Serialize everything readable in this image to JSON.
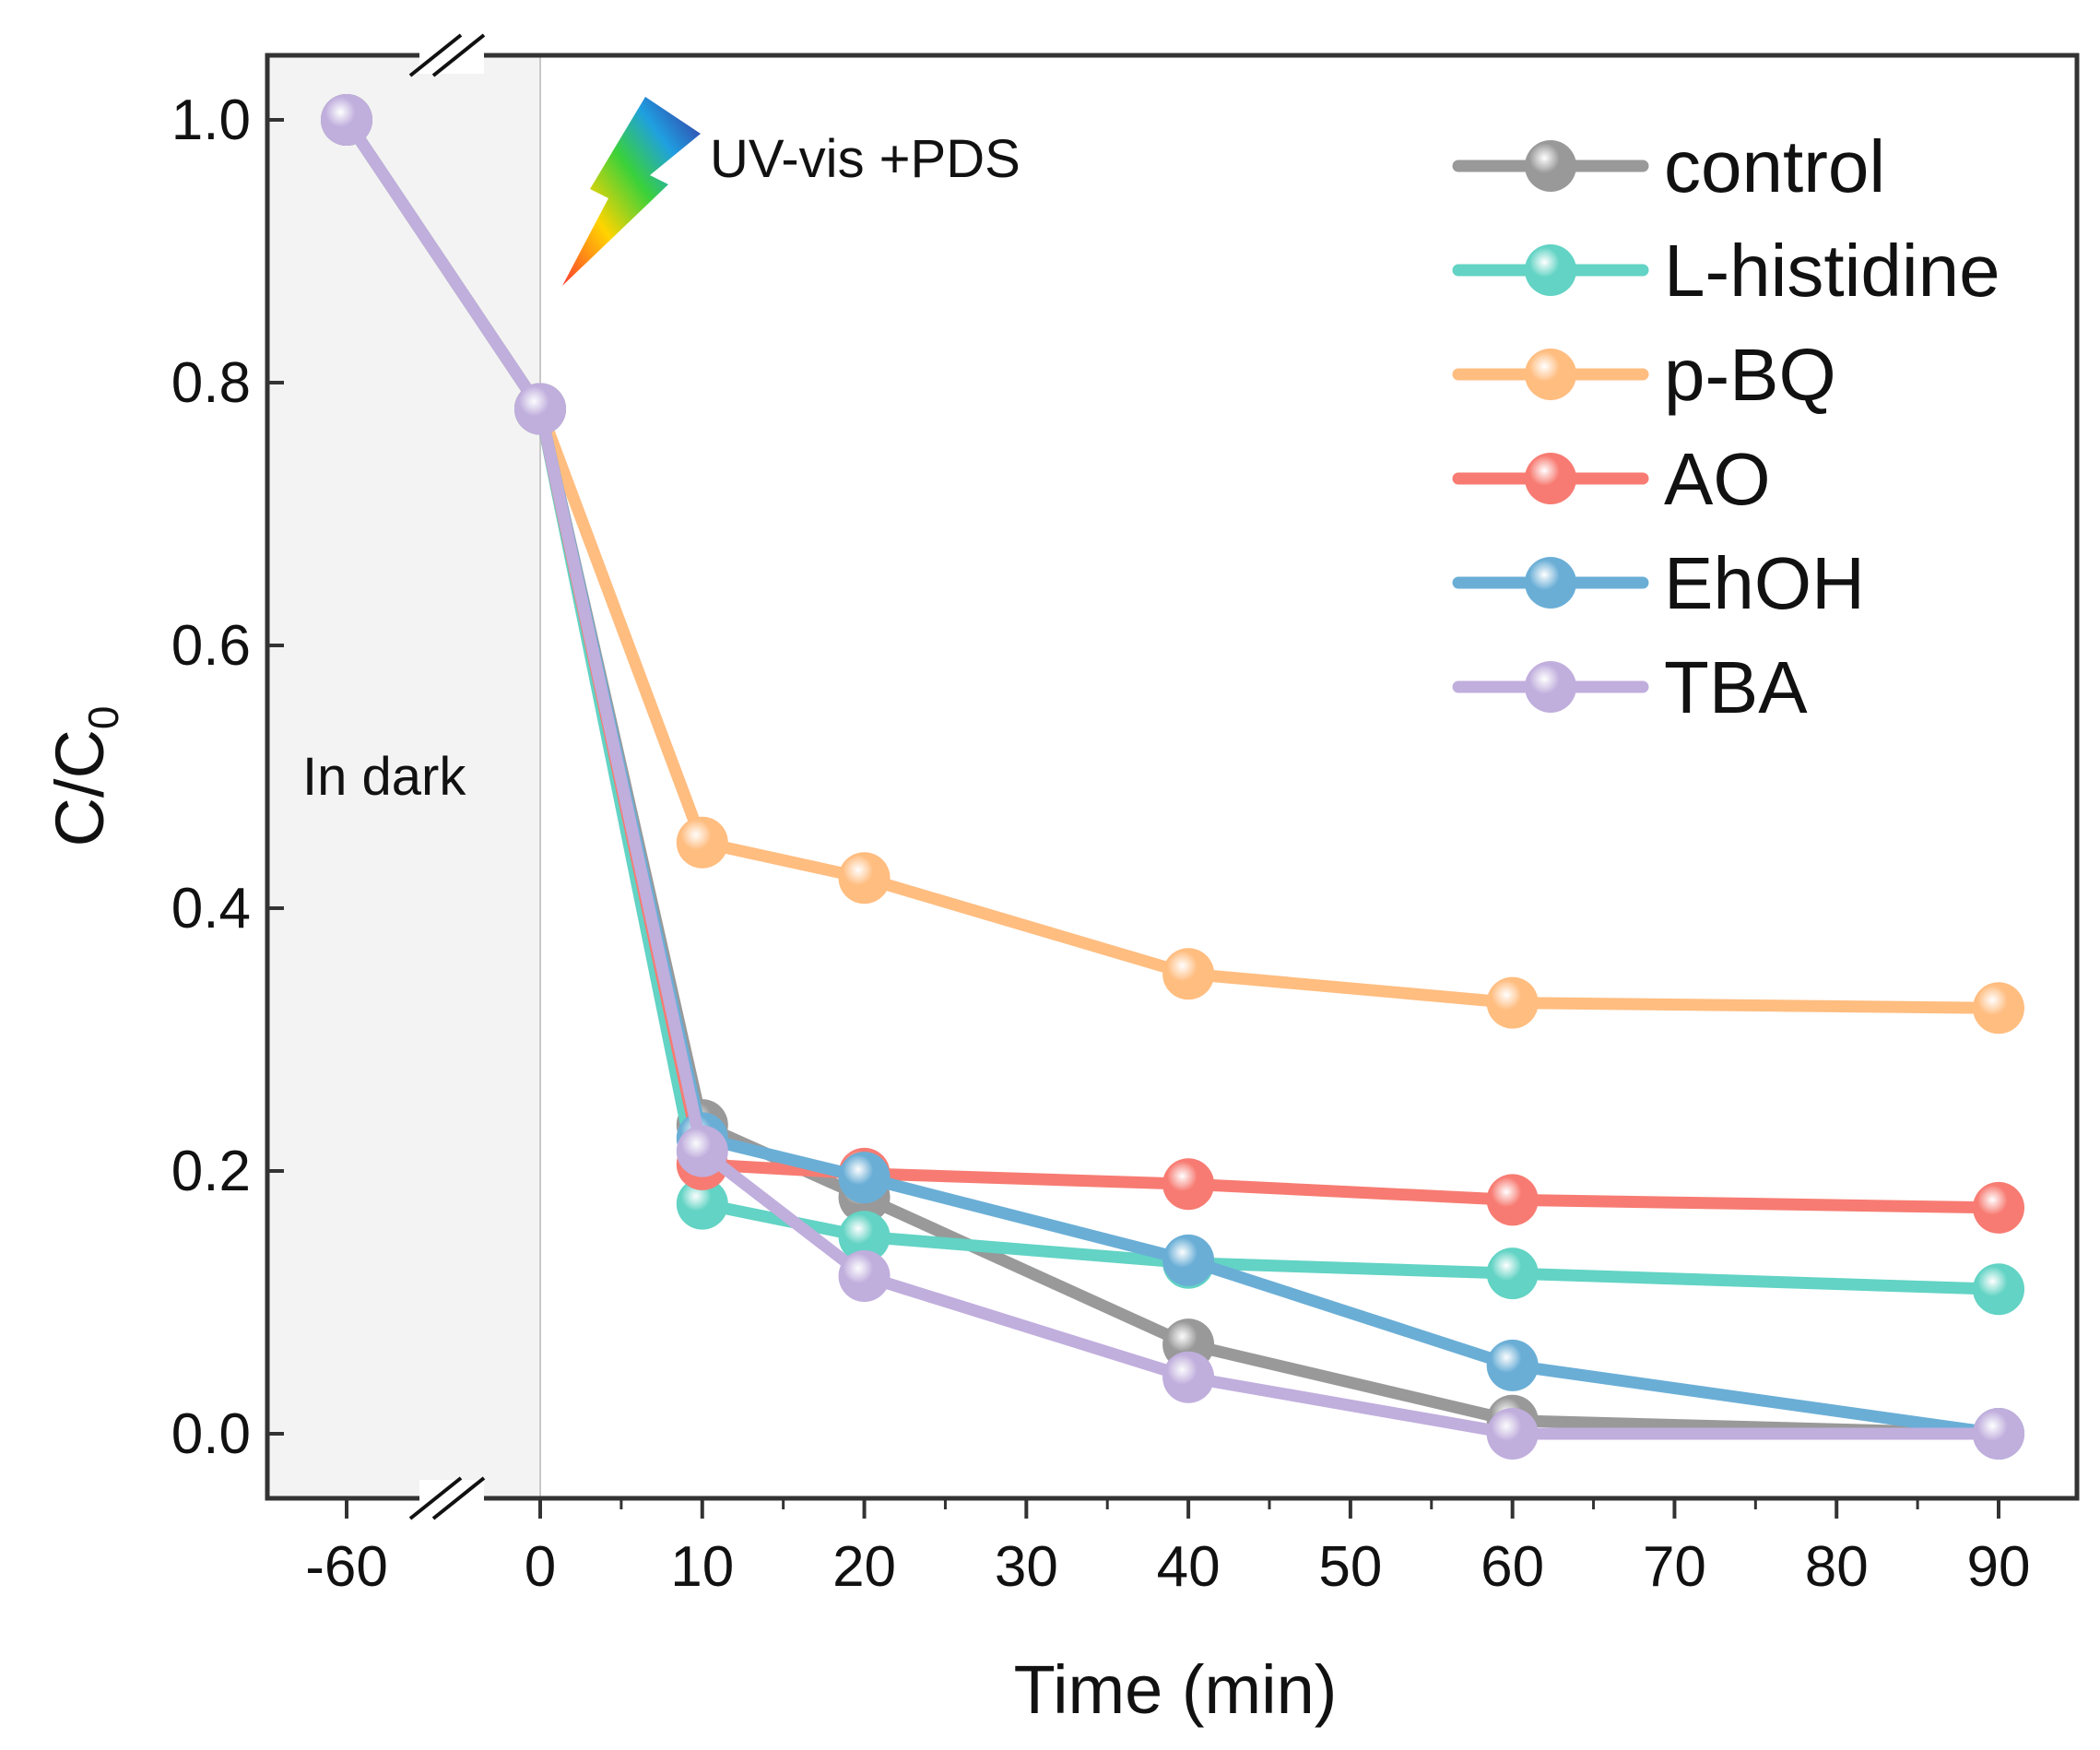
{
  "chart_data": {
    "type": "line",
    "xlabel": "Time (min)",
    "ylabel": "C/C",
    "ylabel_subscript": "0",
    "ylim": [
      0,
      1.0
    ],
    "yticks": [
      0.0,
      0.2,
      0.4,
      0.6,
      0.8,
      1.0
    ],
    "ytick_labels": [
      "0.0",
      "0.2",
      "0.4",
      "0.6",
      "0.8",
      "1.0"
    ],
    "x": [
      -60,
      0,
      10,
      20,
      40,
      60,
      90
    ],
    "xtick_labels": [
      "-60",
      "0",
      "10",
      "20",
      "30",
      "40",
      "50",
      "60",
      "70",
      "80",
      "90"
    ],
    "dark_region_label": "In dark",
    "light_label": "UV-vis +PDS",
    "legend_position": "top-right",
    "series": [
      {
        "name": "control",
        "color": "#999999",
        "values": [
          1.0,
          0.78,
          0.235,
          0.18,
          0.068,
          0.01,
          0.0
        ]
      },
      {
        "name": "L-histidine",
        "color": "#62d3c4",
        "values": [
          1.0,
          0.78,
          0.175,
          0.15,
          0.13,
          0.122,
          0.11
        ]
      },
      {
        "name": "p-BQ",
        "color": "#ffbd80",
        "values": [
          1.0,
          0.78,
          0.45,
          0.423,
          0.35,
          0.328,
          0.324
        ]
      },
      {
        "name": "AO",
        "color": "#f77b72",
        "values": [
          1.0,
          0.78,
          0.205,
          0.198,
          0.19,
          0.178,
          0.172
        ]
      },
      {
        "name": "EhOH",
        "color": "#6aaed6",
        "values": [
          1.0,
          0.78,
          0.225,
          0.195,
          0.132,
          0.052,
          0.0
        ]
      },
      {
        "name": "TBA",
        "color": "#c0aedd",
        "values": [
          1.0,
          0.78,
          0.215,
          0.12,
          0.043,
          0.0,
          0.0
        ]
      }
    ]
  }
}
